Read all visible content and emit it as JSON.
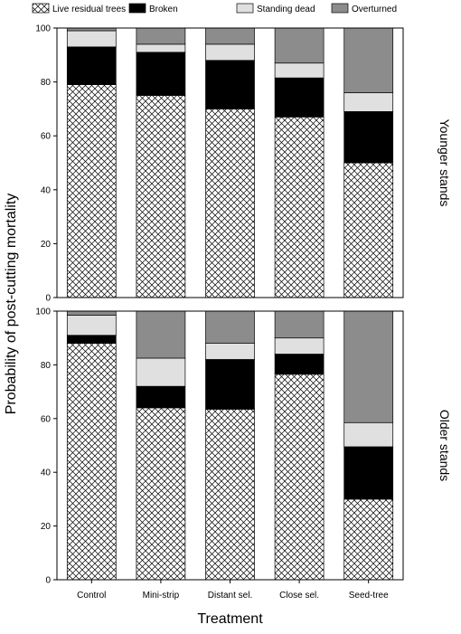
{
  "chart_data": {
    "type": "bar",
    "stacked": true,
    "categories": [
      "Control",
      "Mini-strip",
      "Distant sel.",
      "Close sel.",
      "Seed-tree"
    ],
    "xlabel": "Treatment",
    "ylabel": "Probability of post-cutting mortality",
    "ylim": [
      0,
      100
    ],
    "yticks": [
      0,
      20,
      40,
      60,
      80,
      100
    ],
    "legend_position": "top",
    "series_styles": [
      {
        "name": "Live residual trees",
        "fill": "#ffffff",
        "pattern": "crosshatch"
      },
      {
        "name": "Broken",
        "fill": "#000000"
      },
      {
        "name": "Standing dead",
        "fill": "#e0e0e0"
      },
      {
        "name": "Overturned",
        "fill": "#8c8c8c"
      }
    ],
    "panels": [
      {
        "title": "Younger stands",
        "series": [
          {
            "name": "Live residual trees",
            "values": [
              79,
              75,
              70,
              67,
              50
            ]
          },
          {
            "name": "Broken",
            "values": [
              14,
              16,
              18,
              14.5,
              19
            ]
          },
          {
            "name": "Standing dead",
            "values": [
              6,
              3,
              6,
              5.5,
              7
            ]
          },
          {
            "name": "Overturned",
            "values": [
              1,
              6,
              6,
              13,
              24
            ]
          }
        ]
      },
      {
        "title": "Older stands",
        "series": [
          {
            "name": "Live residual trees",
            "values": [
              88,
              64,
              63.5,
              76.5,
              30
            ]
          },
          {
            "name": "Broken",
            "values": [
              3,
              8,
              18.5,
              7.5,
              19.5
            ]
          },
          {
            "name": "Standing dead",
            "values": [
              7.5,
              10.5,
              6,
              6,
              9
            ]
          },
          {
            "name": "Overturned",
            "values": [
              1.5,
              17.5,
              12,
              10,
              41.5
            ]
          }
        ]
      }
    ]
  }
}
